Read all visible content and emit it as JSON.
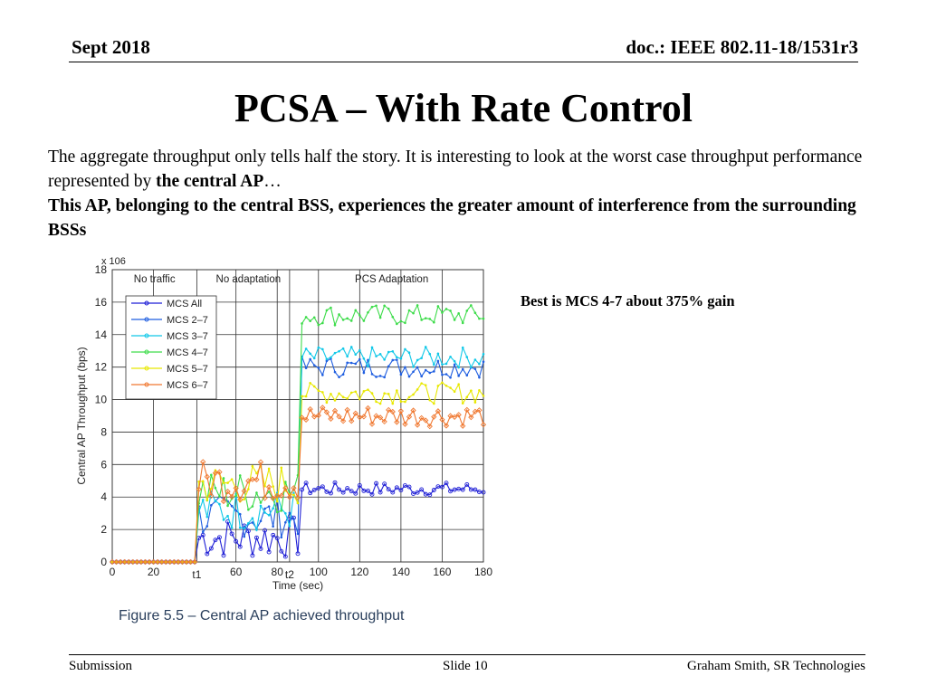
{
  "header": {
    "date": "Sept 2018",
    "doc": "doc.: IEEE 802.11-18/1531r3"
  },
  "title": "PCSA –  With Rate Control",
  "body": {
    "p1_text": "The aggregate throughput only tells half the story. It is interesting to look at the worst case throughput performance represented by ",
    "p1_bold": "the central AP",
    "p1_end": "…",
    "p2": "This AP, belonging to the central BSS, experiences the greater amount of interference from the surrounding BSSs"
  },
  "annotation": "Best is MCS 4-7 about 375% gain",
  "caption": "Figure 5.5 – Central AP achieved throughput",
  "footer": {
    "left": "Submission",
    "center": "Slide 10",
    "right": "Graham Smith, SR Technologies"
  },
  "chart_data": {
    "type": "line",
    "xlabel": "Time (sec)",
    "ylabel": "Central AP Throughput (bps)",
    "y_multiplier": "x 10^6",
    "xlim": [
      0,
      180
    ],
    "ylim": [
      0,
      18
    ],
    "xticks": [
      0,
      20,
      60,
      80,
      100,
      120,
      140,
      160,
      180
    ],
    "extra_xticks": [
      {
        "label": "t1",
        "x": 41
      },
      {
        "label": "t2",
        "x": 86
      }
    ],
    "yticks": [
      0,
      2,
      4,
      6,
      8,
      10,
      12,
      14,
      16,
      18
    ],
    "grid": true,
    "phases": [
      {
        "label": "No traffic",
        "x_start": 0,
        "x_end": 41
      },
      {
        "label": "No adaptation",
        "x_start": 41,
        "x_end": 91
      },
      {
        "label": "PCS Adaptation",
        "x_start": 91,
        "x_end": 180
      }
    ],
    "legend_position": "top-left",
    "series": [
      {
        "name": "MCS All",
        "color": "#1f1fd6",
        "marker": "circle",
        "levels": {
          "no_traffic": 0,
          "no_adaptation": 1.5,
          "pcs": 4.5
        }
      },
      {
        "name": "MCS 2–7",
        "color": "#1f5ee0",
        "marker": "dot",
        "levels": {
          "no_traffic": 0,
          "no_adaptation": 2.8,
          "pcs": 12.0
        }
      },
      {
        "name": "MCS 3–7",
        "color": "#10c8e8",
        "marker": "x",
        "levels": {
          "no_traffic": 0,
          "no_adaptation": 3.2,
          "pcs": 12.6
        }
      },
      {
        "name": "MCS 4–7",
        "color": "#3ddc4a",
        "marker": "dot",
        "levels": {
          "no_traffic": 0,
          "no_adaptation": 4.3,
          "pcs": 15.2
        }
      },
      {
        "name": "MCS 5–7",
        "color": "#e8e800",
        "marker": "x",
        "levels": {
          "no_traffic": 0,
          "no_adaptation": 4.8,
          "pcs": 10.4
        }
      },
      {
        "name": "MCS 6–7",
        "color": "#f07830",
        "marker": "diamond",
        "levels": {
          "no_traffic": 0,
          "no_adaptation": 5.0,
          "pcs": 9.0
        }
      }
    ]
  }
}
